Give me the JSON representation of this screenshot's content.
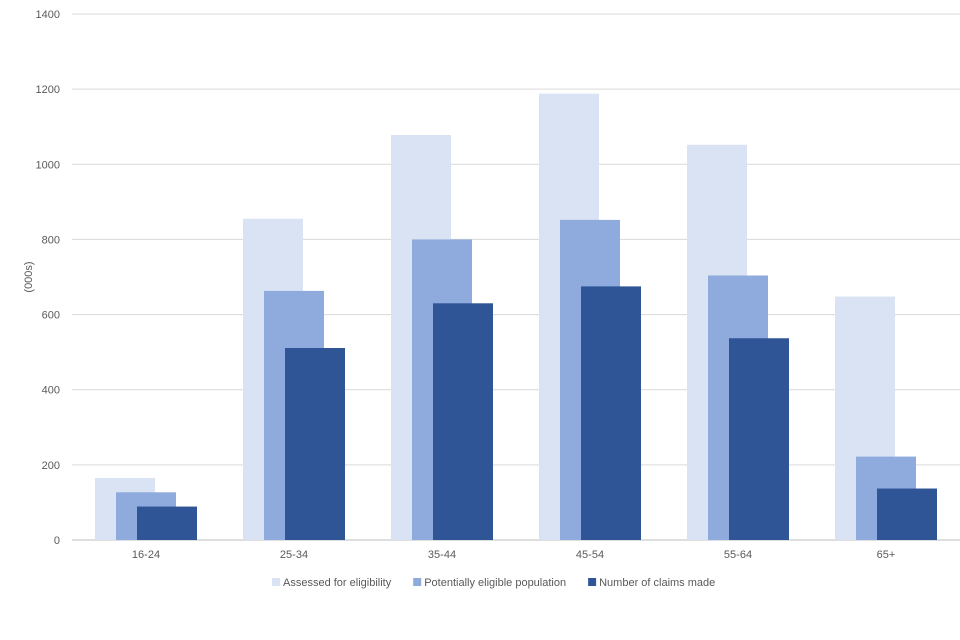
{
  "chart_data": {
    "type": "bar",
    "title": "",
    "xlabel": "",
    "ylabel": "(000s)",
    "ylim": [
      0,
      1400
    ],
    "yticks": [
      0,
      200,
      400,
      600,
      800,
      1000,
      1200,
      1400
    ],
    "grid": true,
    "legend_position": "bottom",
    "categories": [
      "16-24",
      "25-34",
      "35-44",
      "45-54",
      "55-64",
      "65+"
    ],
    "series": [
      {
        "name": "Assessed for eligibility",
        "color": "#dae3f3",
        "values": [
          165,
          855,
          1078,
          1188,
          1052,
          648
        ]
      },
      {
        "name": "Potentially eligible population",
        "color": "#8faadc",
        "values": [
          127,
          663,
          800,
          852,
          704,
          222
        ]
      },
      {
        "name": "Number of claims made",
        "color": "#2f5597",
        "values": [
          89,
          511,
          630,
          675,
          537,
          137
        ]
      }
    ]
  }
}
